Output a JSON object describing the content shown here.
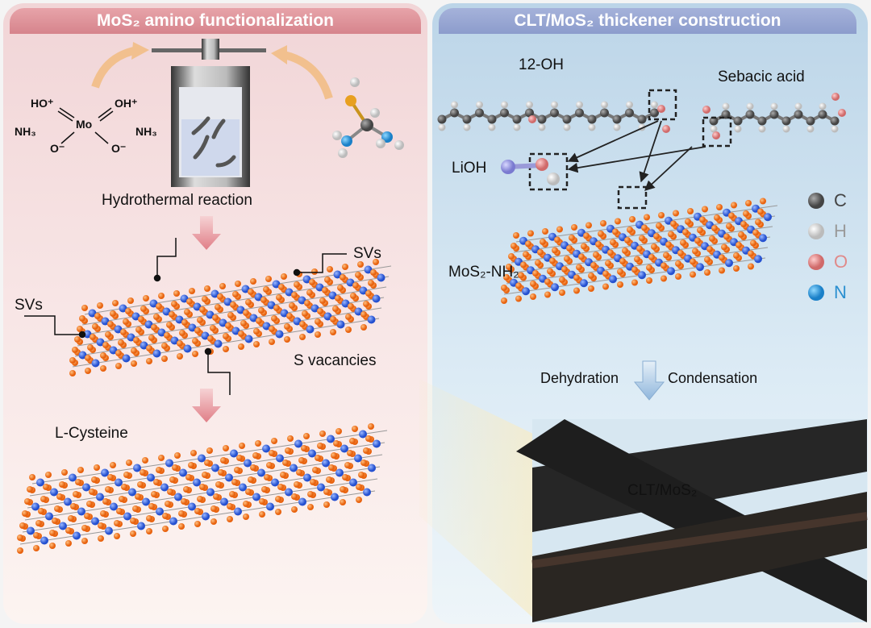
{
  "left_panel": {
    "title": "MoS₂ amino functionalization",
    "precursor": {
      "ho_plus": "HO⁺",
      "oh_plus": "OH⁺",
      "mo": "Mo",
      "nh3_left": "NH₃",
      "nh3_right": "NH₃",
      "o_minus_left": "O⁻",
      "o_minus_right": "O⁻"
    },
    "reaction_label": "Hydrothermal reaction",
    "svs_top": "SVs",
    "svs_left": "SVs",
    "s_vacancies": "S vacancies",
    "l_cysteine": "L-Cysteine"
  },
  "right_panel": {
    "title": "CLT/MoS₂ thickener construction",
    "label_12oh": "12-OH",
    "sebacic_acid": "Sebacic acid",
    "lioh": "LiOH",
    "mos2_nh2": "MoS₂-NH₂",
    "dehydration": "Dehydration",
    "condensation": "Condensation",
    "clt_mos2": "CLT/MoS₂",
    "legend": [
      {
        "symbol": "C",
        "color": "#444444"
      },
      {
        "symbol": "H",
        "color": "#9a9a9a"
      },
      {
        "symbol": "O",
        "color": "#e08a8a"
      },
      {
        "symbol": "N",
        "color": "#2a8fd0"
      }
    ]
  },
  "colors": {
    "sulfur": "#f07a1c",
    "molybdenum": "#3a6fe0",
    "arrow_orange": "#f2c08e",
    "arrow_down_pink": "#e88e95",
    "arrow_down_blue": "#9fbfe0"
  }
}
